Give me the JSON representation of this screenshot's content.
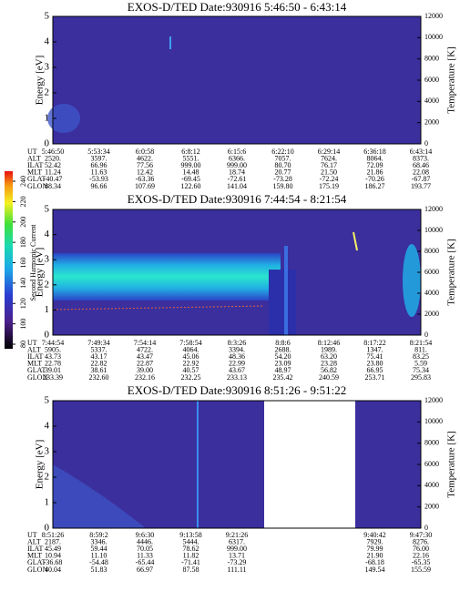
{
  "chart_data": [
    {
      "type": "heatmap",
      "title": "EXOS-D/TED  Date:930916  5:46:50 - 6:43:14",
      "ylabel": "Energy [eV]",
      "y2label": "Temperature [K]",
      "ylim": [
        0,
        5
      ],
      "yticks": [
        0,
        1,
        2,
        3,
        4,
        5
      ],
      "y2lim": [
        0,
        12000
      ],
      "y2ticks": [
        0,
        2000,
        4000,
        6000,
        8000,
        10000,
        12000
      ],
      "table": {
        "row_labels": [
          "UT",
          "ALT",
          "ILAT",
          "MLT",
          "GLAT",
          "GLON"
        ],
        "rows": [
          [
            "5:46:50",
            "5:53:34",
            "6:0:58",
            "6:8:12",
            "6:15:6",
            "6:22:10",
            "6:29:14",
            "6:36:18",
            "6:43:14"
          ],
          [
            "2520.",
            "3597.",
            "4622.",
            "5551.",
            "6366.",
            "7057.",
            "7624.",
            "8064.",
            "8373."
          ],
          [
            "52.42",
            "66.96",
            "77.56",
            "999.00",
            "999.00",
            "80.70",
            "76.17",
            "72.09",
            "68.46"
          ],
          [
            "11.24",
            "11.63",
            "12.42",
            "14.48",
            "18.74",
            "20.77",
            "21.50",
            "21.86",
            "22.08"
          ],
          [
            "-40.47",
            "-53.93",
            "-63.36",
            "-69.45",
            "-72.61",
            "-73.28",
            "-72.24",
            "-70.26",
            "-67.87"
          ],
          [
            "88.34",
            "96.66",
            "107.69",
            "122.60",
            "141.04",
            "159.80",
            "175.19",
            "186.27",
            "193.77"
          ]
        ]
      }
    },
    {
      "type": "heatmap",
      "title": "EXOS-D/TED  Date:930916  7:44:54 - 8:21:54",
      "ylabel": "Energy [eV]",
      "y2label": "Temperature [K]",
      "ylim": [
        0,
        5
      ],
      "yticks": [
        0,
        1,
        2,
        3,
        4,
        5
      ],
      "y2lim": [
        0,
        12000
      ],
      "y2ticks": [
        0,
        2000,
        4000,
        6000,
        8000,
        10000,
        12000
      ],
      "colorbar": {
        "label": "Second Harmonic Current",
        "clim": [
          80,
          240
        ],
        "ticks": [
          80,
          100,
          120,
          140,
          160,
          180,
          200,
          220,
          240
        ]
      },
      "table": {
        "row_labels": [
          "UT",
          "ALT",
          "ILAT",
          "MLT",
          "GLAT",
          "GLON"
        ],
        "rows": [
          [
            "7:44:54",
            "7:49:34",
            "7:54:14",
            "7:58:54",
            "8:3:26",
            "8:8:6",
            "8:12:46",
            "8:17:22",
            "8:21:54"
          ],
          [
            "5905.",
            "5337.",
            "4722.",
            "4064.",
            "3394.",
            "2688.",
            "1989.",
            "1347.",
            "811."
          ],
          [
            "43.73",
            "43.17",
            "43.47",
            "45.06",
            "48.36",
            "54.20",
            "63.20",
            "75.41",
            "83.25"
          ],
          [
            "22.78",
            "22.82",
            "22.87",
            "22.92",
            "22.99",
            "23.09",
            "23.28",
            "23.80",
            "5.59"
          ],
          [
            "39.01",
            "38.61",
            "39.00",
            "40.57",
            "43.67",
            "48.97",
            "56.82",
            "66.95",
            "75.34"
          ],
          [
            "233.39",
            "232.60",
            "232.16",
            "232.25",
            "233.13",
            "235.42",
            "240.59",
            "253.71",
            "295.83"
          ]
        ]
      }
    },
    {
      "type": "heatmap",
      "title": "EXOS-D/TED  Date:930916  8:51:26 - 9:51:22",
      "ylabel": "Energy [eV]",
      "y2label": "Temperature [K]",
      "ylim": [
        0,
        5
      ],
      "yticks": [
        0,
        1,
        2,
        3,
        4,
        5
      ],
      "y2lim": [
        0,
        12000
      ],
      "y2ticks": [
        0,
        2000,
        4000,
        6000,
        8000,
        10000,
        12000
      ],
      "table": {
        "row_labels": [
          "UT",
          "ALT",
          "ILAT",
          "MLT",
          "GLAT",
          "GLON"
        ],
        "rows": [
          [
            "8:51:26",
            "8:59:2",
            "9:6:30",
            "9:13:58",
            "9:21:26",
            null,
            null,
            "9:40:42",
            "9:47:30"
          ],
          [
            "2187.",
            "3346.",
            "4446.",
            "5444.",
            "6317.",
            null,
            null,
            "7929.",
            "8276."
          ],
          [
            "45.49",
            "59.44",
            "70.05",
            "78.62",
            "999.00",
            null,
            null,
            "79.99",
            "76.00"
          ],
          [
            "10.94",
            "11.10",
            "11.33",
            "11.82",
            "13.71",
            null,
            null,
            "21.90",
            "22.16"
          ],
          [
            "-36.68",
            "-54.48",
            "-65.44",
            "-71.41",
            "-73.29",
            null,
            null,
            "-68.18",
            "-65.35"
          ],
          [
            "40.04",
            "51.83",
            "66.97",
            "87.58",
            "111.11",
            null,
            null,
            "149.54",
            "155.59"
          ]
        ]
      }
    }
  ]
}
